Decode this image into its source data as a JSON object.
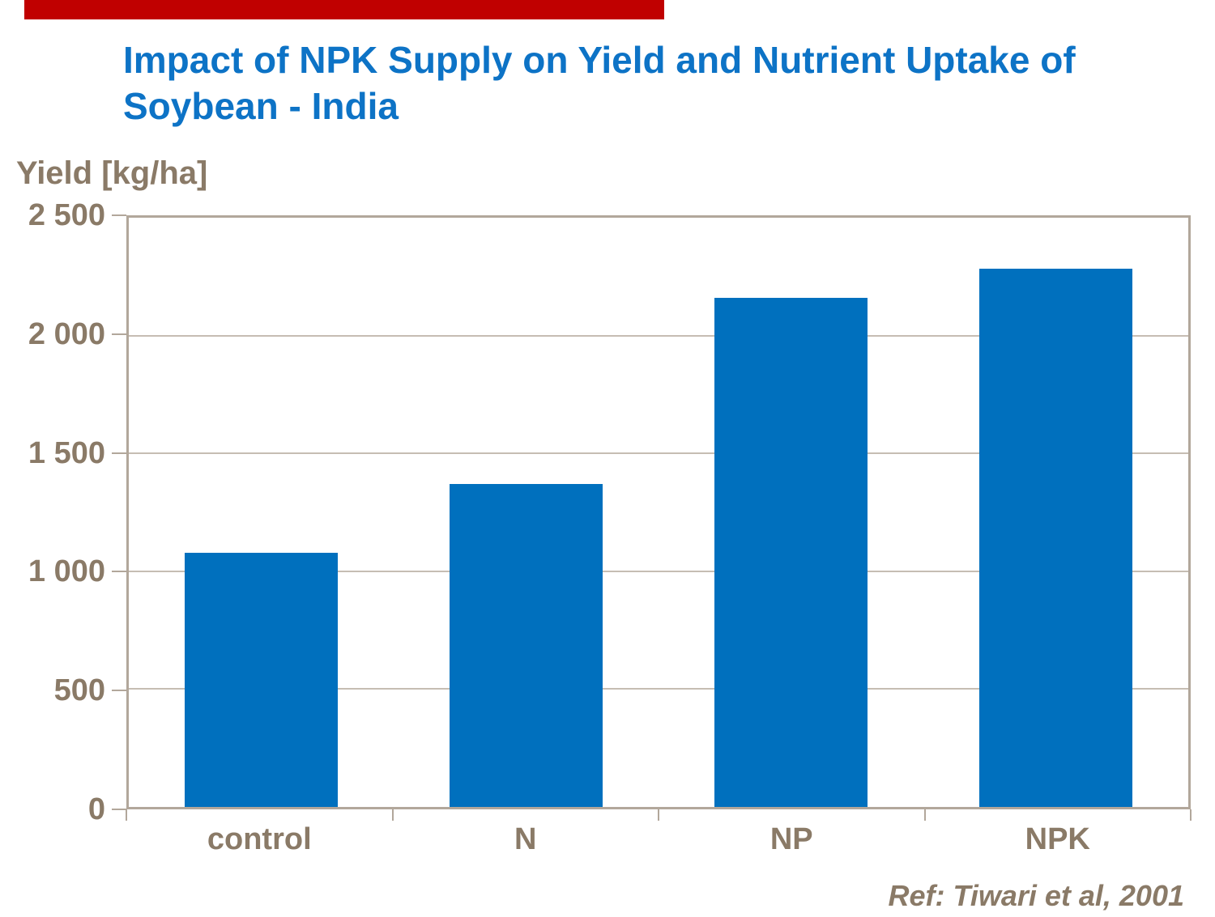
{
  "page": {
    "accent_bar_color": "#C00000",
    "title": {
      "line1": "Impact of NPK Supply on Yield and Nutrient Uptake of",
      "line2": "Soybean - India",
      "color": "#0D73C6"
    },
    "y_axis_title": "Yield [kg/ha]",
    "reference": "Ref: Tiwari et al, 2001",
    "text_color": "#8A7A67"
  },
  "chart_data": {
    "type": "bar",
    "title": "Impact of NPK Supply on Yield and Nutrient Uptake of Soybean - India",
    "ylabel": "Yield [kg/ha]",
    "xlabel": "",
    "categories": [
      "control",
      "N",
      "NP",
      "NPK"
    ],
    "values": [
      1080,
      1370,
      2160,
      2285
    ],
    "ylim": [
      0,
      2500
    ],
    "ytick_interval": 500,
    "yticks": [
      {
        "value": 0,
        "label": "0"
      },
      {
        "value": 500,
        "label": "500"
      },
      {
        "value": 1000,
        "label": "1 000"
      },
      {
        "value": 1500,
        "label": "1 500"
      },
      {
        "value": 2000,
        "label": "2 000"
      },
      {
        "value": 2500,
        "label": "2 500"
      }
    ],
    "grid": true,
    "legend": "none",
    "bar_color": "#0070BE",
    "plot_border_color": "#B2A79B",
    "gridline_color": "#C6BDB3",
    "source": "Ref: Tiwari et al, 2001"
  }
}
